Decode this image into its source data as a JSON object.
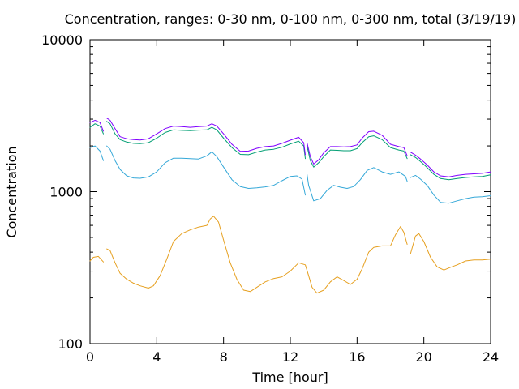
{
  "chart_data": {
    "type": "line",
    "title": "Concentration, ranges: 0-30 nm, 0-100 nm, 0-300 nm, total (3/19/19)",
    "xlabel": "Time [hour]",
    "ylabel": "Concentration",
    "xlim": [
      0,
      24
    ],
    "ylim": [
      100,
      10000
    ],
    "yscale": "log",
    "grid": false,
    "legend": "none",
    "x_ticks": [
      0,
      4,
      8,
      12,
      16,
      20,
      24
    ],
    "x_tick_labels": [
      "0",
      "4",
      "8",
      "12",
      "16",
      "20",
      "24"
    ],
    "y_ticks": [
      100,
      1000,
      10000
    ],
    "y_tick_labels": [
      "100",
      "1000",
      "10000"
    ],
    "series": [
      {
        "color": "#e6a020",
        "segments": [
          [
            [
              0.0,
              350
            ],
            [
              0.2,
              370
            ],
            [
              0.5,
              375
            ],
            [
              0.8,
              345
            ]
          ],
          [
            [
              1.0,
              420
            ],
            [
              1.2,
              410
            ],
            [
              1.5,
              340
            ],
            [
              1.8,
              290
            ],
            [
              2.2,
              265
            ],
            [
              2.6,
              250
            ],
            [
              3.0,
              240
            ],
            [
              3.5,
              232
            ],
            [
              3.8,
              240
            ],
            [
              4.2,
              280
            ],
            [
              4.6,
              360
            ],
            [
              5.0,
              470
            ],
            [
              5.5,
              530
            ],
            [
              6.0,
              560
            ],
            [
              6.5,
              585
            ],
            [
              7.0,
              600
            ],
            [
              7.2,
              660
            ],
            [
              7.4,
              690
            ],
            [
              7.7,
              630
            ],
            [
              8.0,
              480
            ],
            [
              8.4,
              340
            ],
            [
              8.8,
              265
            ],
            [
              9.2,
              225
            ],
            [
              9.6,
              220
            ],
            [
              10.0,
              235
            ],
            [
              10.5,
              255
            ],
            [
              11.0,
              268
            ],
            [
              11.5,
              275
            ],
            [
              12.0,
              300
            ],
            [
              12.5,
              340
            ],
            [
              12.9,
              330
            ],
            [
              13.1,
              280
            ],
            [
              13.3,
              235
            ],
            [
              13.6,
              215
            ],
            [
              14.0,
              225
            ],
            [
              14.4,
              255
            ],
            [
              14.8,
              275
            ],
            [
              15.2,
              260
            ],
            [
              15.6,
              245
            ],
            [
              16.0,
              265
            ],
            [
              16.3,
              310
            ],
            [
              16.7,
              400
            ],
            [
              17.0,
              430
            ],
            [
              17.5,
              440
            ],
            [
              18.0,
              440
            ],
            [
              18.3,
              520
            ],
            [
              18.6,
              590
            ],
            [
              18.8,
              540
            ],
            [
              19.0,
              450
            ]
          ],
          [
            [
              19.2,
              390
            ],
            [
              19.5,
              510
            ],
            [
              19.7,
              530
            ],
            [
              20.0,
              470
            ],
            [
              20.4,
              370
            ],
            [
              20.8,
              320
            ],
            [
              21.2,
              305
            ],
            [
              21.6,
              318
            ],
            [
              22.0,
              330
            ],
            [
              22.5,
              350
            ],
            [
              23.0,
              355
            ],
            [
              23.5,
              355
            ],
            [
              24.0,
              360
            ]
          ]
        ]
      },
      {
        "color": "#35a8d8",
        "segments": [
          [
            [
              0.0,
              1950
            ],
            [
              0.3,
              2000
            ],
            [
              0.6,
              1850
            ],
            [
              0.8,
              1600
            ]
          ],
          [
            [
              1.0,
              2000
            ],
            [
              1.2,
              1900
            ],
            [
              1.5,
              1600
            ],
            [
              1.8,
              1400
            ],
            [
              2.2,
              1270
            ],
            [
              2.6,
              1230
            ],
            [
              3.0,
              1225
            ],
            [
              3.5,
              1250
            ],
            [
              4.0,
              1350
            ],
            [
              4.5,
              1550
            ],
            [
              5.0,
              1660
            ],
            [
              5.5,
              1660
            ],
            [
              6.0,
              1650
            ],
            [
              6.5,
              1640
            ],
            [
              7.0,
              1720
            ],
            [
              7.3,
              1830
            ],
            [
              7.6,
              1700
            ],
            [
              8.0,
              1450
            ],
            [
              8.5,
              1200
            ],
            [
              9.0,
              1080
            ],
            [
              9.5,
              1050
            ],
            [
              10.0,
              1060
            ],
            [
              10.5,
              1075
            ],
            [
              11.0,
              1100
            ],
            [
              11.5,
              1180
            ],
            [
              12.0,
              1260
            ],
            [
              12.4,
              1270
            ],
            [
              12.7,
              1210
            ],
            [
              12.9,
              950
            ]
          ],
          [
            [
              13.0,
              1300
            ],
            [
              13.1,
              1100
            ],
            [
              13.4,
              870
            ],
            [
              13.8,
              900
            ],
            [
              14.2,
              1020
            ],
            [
              14.6,
              1100
            ],
            [
              15.0,
              1070
            ],
            [
              15.4,
              1050
            ],
            [
              15.8,
              1080
            ],
            [
              16.2,
              1200
            ],
            [
              16.6,
              1380
            ],
            [
              17.0,
              1440
            ],
            [
              17.5,
              1350
            ],
            [
              18.0,
              1300
            ],
            [
              18.5,
              1350
            ],
            [
              18.9,
              1260
            ],
            [
              19.0,
              1170
            ]
          ],
          [
            [
              19.2,
              1240
            ],
            [
              19.5,
              1280
            ],
            [
              19.8,
              1210
            ],
            [
              20.2,
              1100
            ],
            [
              20.6,
              950
            ],
            [
              21.0,
              850
            ],
            [
              21.5,
              840
            ],
            [
              22.0,
              870
            ],
            [
              22.5,
              900
            ],
            [
              23.0,
              920
            ],
            [
              23.5,
              925
            ],
            [
              24.0,
              940
            ]
          ]
        ]
      },
      {
        "color": "#009e73",
        "segments": [
          [
            [
              0.0,
              2650
            ],
            [
              0.3,
              2800
            ],
            [
              0.6,
              2700
            ],
            [
              0.8,
              2400
            ]
          ],
          [
            [
              1.0,
              2900
            ],
            [
              1.2,
              2800
            ],
            [
              1.5,
              2400
            ],
            [
              1.8,
              2200
            ],
            [
              2.2,
              2120
            ],
            [
              2.6,
              2080
            ],
            [
              3.0,
              2070
            ],
            [
              3.5,
              2100
            ],
            [
              4.0,
              2250
            ],
            [
              4.5,
              2450
            ],
            [
              5.0,
              2550
            ],
            [
              5.5,
              2530
            ],
            [
              6.0,
              2520
            ],
            [
              6.5,
              2540
            ],
            [
              7.0,
              2550
            ],
            [
              7.3,
              2650
            ],
            [
              7.6,
              2550
            ],
            [
              8.0,
              2250
            ],
            [
              8.5,
              1950
            ],
            [
              9.0,
              1760
            ],
            [
              9.5,
              1750
            ],
            [
              10.0,
              1820
            ],
            [
              10.5,
              1880
            ],
            [
              11.0,
              1900
            ],
            [
              11.5,
              1960
            ],
            [
              12.0,
              2060
            ],
            [
              12.5,
              2150
            ],
            [
              12.8,
              2000
            ],
            [
              12.9,
              1650
            ]
          ],
          [
            [
              13.0,
              2000
            ],
            [
              13.2,
              1600
            ],
            [
              13.4,
              1450
            ],
            [
              13.7,
              1550
            ],
            [
              14.0,
              1700
            ],
            [
              14.4,
              1880
            ],
            [
              14.8,
              1870
            ],
            [
              15.2,
              1860
            ],
            [
              15.6,
              1860
            ],
            [
              16.0,
              1920
            ],
            [
              16.3,
              2100
            ],
            [
              16.7,
              2300
            ],
            [
              17.0,
              2330
            ],
            [
              17.5,
              2200
            ],
            [
              18.0,
              1950
            ],
            [
              18.5,
              1880
            ],
            [
              18.8,
              1850
            ],
            [
              19.0,
              1650
            ]
          ],
          [
            [
              19.2,
              1750
            ],
            [
              19.5,
              1680
            ],
            [
              19.8,
              1580
            ],
            [
              20.2,
              1440
            ],
            [
              20.6,
              1300
            ],
            [
              21.0,
              1220
            ],
            [
              21.5,
              1200
            ],
            [
              22.0,
              1220
            ],
            [
              22.5,
              1240
            ],
            [
              23.0,
              1250
            ],
            [
              23.5,
              1260
            ],
            [
              24.0,
              1290
            ]
          ]
        ]
      },
      {
        "color": "#8000ff",
        "segments": [
          [
            [
              0.0,
              2850
            ],
            [
              0.3,
              2950
            ],
            [
              0.6,
              2850
            ],
            [
              0.8,
              2500
            ]
          ],
          [
            [
              1.0,
              3050
            ],
            [
              1.2,
              2950
            ],
            [
              1.5,
              2600
            ],
            [
              1.8,
              2300
            ],
            [
              2.2,
              2230
            ],
            [
              2.6,
              2200
            ],
            [
              3.0,
              2190
            ],
            [
              3.5,
              2230
            ],
            [
              4.0,
              2400
            ],
            [
              4.5,
              2600
            ],
            [
              5.0,
              2700
            ],
            [
              5.5,
              2680
            ],
            [
              6.0,
              2650
            ],
            [
              6.5,
              2680
            ],
            [
              7.0,
              2700
            ],
            [
              7.3,
              2800
            ],
            [
              7.6,
              2700
            ],
            [
              8.0,
              2400
            ],
            [
              8.5,
              2050
            ],
            [
              9.0,
              1840
            ],
            [
              9.5,
              1850
            ],
            [
              10.0,
              1930
            ],
            [
              10.5,
              1980
            ],
            [
              11.0,
              2000
            ],
            [
              11.5,
              2080
            ],
            [
              12.0,
              2180
            ],
            [
              12.5,
              2280
            ],
            [
              12.8,
              2100
            ],
            [
              12.9,
              1750
            ]
          ],
          [
            [
              13.0,
              2100
            ],
            [
              13.2,
              1700
            ],
            [
              13.4,
              1520
            ],
            [
              13.7,
              1620
            ],
            [
              14.0,
              1800
            ],
            [
              14.4,
              1980
            ],
            [
              14.8,
              1980
            ],
            [
              15.2,
              1970
            ],
            [
              15.6,
              1980
            ],
            [
              16.0,
              2030
            ],
            [
              16.3,
              2250
            ],
            [
              16.7,
              2480
            ],
            [
              17.0,
              2500
            ],
            [
              17.5,
              2350
            ],
            [
              18.0,
              2050
            ],
            [
              18.5,
              1980
            ],
            [
              18.8,
              1950
            ],
            [
              19.0,
              1720
            ]
          ],
          [
            [
              19.2,
              1820
            ],
            [
              19.5,
              1740
            ],
            [
              19.8,
              1640
            ],
            [
              20.2,
              1500
            ],
            [
              20.6,
              1350
            ],
            [
              21.0,
              1270
            ],
            [
              21.5,
              1250
            ],
            [
              22.0,
              1280
            ],
            [
              22.5,
              1300
            ],
            [
              23.0,
              1310
            ],
            [
              23.5,
              1320
            ],
            [
              24.0,
              1350
            ]
          ]
        ]
      }
    ]
  }
}
